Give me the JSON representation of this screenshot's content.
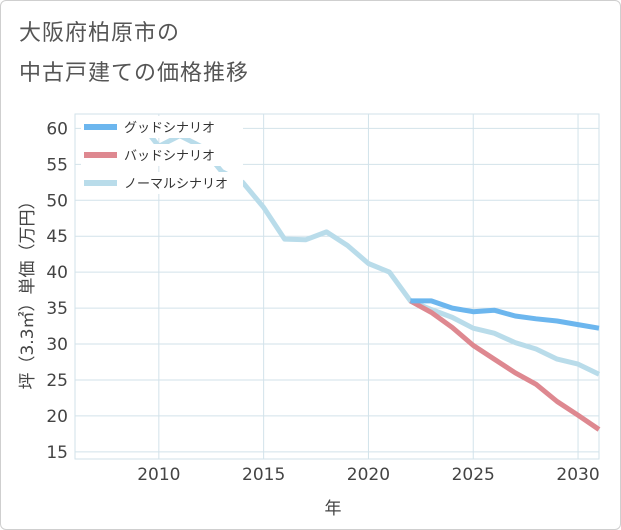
{
  "title_lines": [
    "大阪府柏原市の",
    "中古戸建ての価格推移"
  ],
  "chart_data": {
    "type": "line",
    "title": "大阪府柏原市の中古戸建ての価格推移",
    "xlabel": "年",
    "ylabel": "坪（3.3㎡）単価（万円）",
    "xlim": [
      2006,
      2031
    ],
    "ylim": [
      14,
      62
    ],
    "xticks": [
      2010,
      2015,
      2020,
      2025,
      2030
    ],
    "yticks": [
      15,
      20,
      25,
      30,
      35,
      40,
      45,
      50,
      55,
      60
    ],
    "grid": true,
    "legend_position": "top-left",
    "series": [
      {
        "name": "グッドシナリオ",
        "color": "#6cb6ee",
        "x": [
          2022,
          2023,
          2024,
          2025,
          2026,
          2027,
          2028,
          2029,
          2030,
          2031
        ],
        "y": [
          36.0,
          36.0,
          35.0,
          34.5,
          34.7,
          33.9,
          33.5,
          33.2,
          32.7,
          32.2
        ]
      },
      {
        "name": "バッドシナリオ",
        "color": "#de8890",
        "x": [
          2022,
          2023,
          2024,
          2025,
          2026,
          2027,
          2028,
          2029,
          2030,
          2031
        ],
        "y": [
          36.0,
          34.4,
          32.3,
          29.8,
          27.9,
          26.0,
          24.4,
          22.0,
          20.1,
          18.1
        ]
      },
      {
        "name": "ノーマルシナリオ",
        "color": "#b9dcea",
        "x": [
          2008,
          2009,
          2010,
          2011,
          2012,
          2013,
          2014,
          2015,
          2016,
          2017,
          2018,
          2019,
          2020,
          2021,
          2022,
          2023,
          2024,
          2025,
          2026,
          2027,
          2028,
          2029,
          2030,
          2031
        ],
        "y": [
          60.0,
          61.2,
          57.5,
          59.0,
          57.5,
          54.0,
          52.5,
          49.0,
          44.6,
          44.5,
          45.6,
          43.7,
          41.2,
          40.0,
          36.0,
          34.8,
          33.7,
          32.2,
          31.5,
          30.2,
          29.3,
          27.9,
          27.2,
          25.8
        ]
      }
    ]
  }
}
